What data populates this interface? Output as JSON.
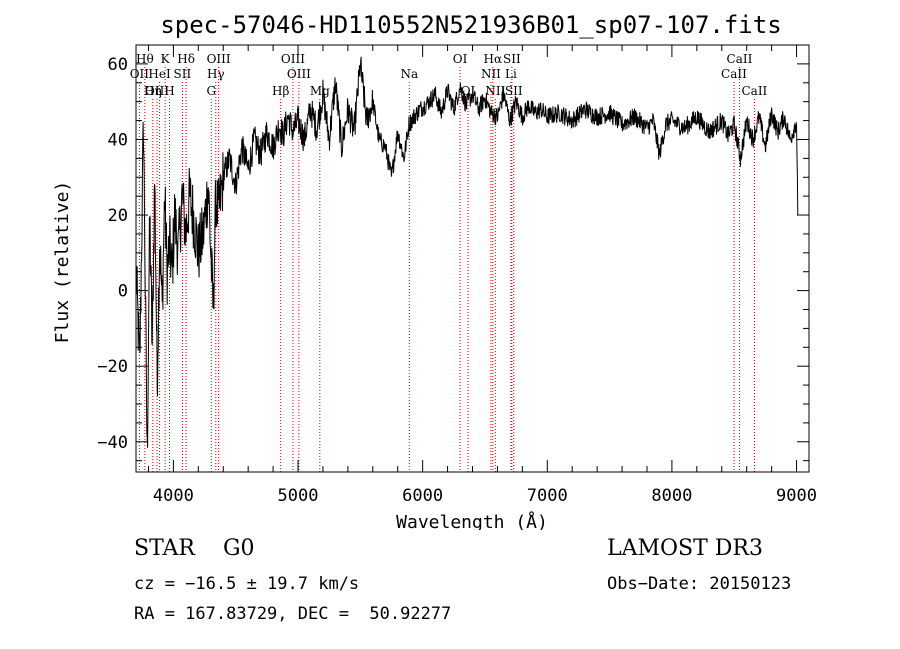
{
  "chart_data": {
    "type": "line",
    "title": "spec-57046-HD110552N521936B01_sp07-107.fits",
    "xlabel": "Wavelength (Å)",
    "ylabel": "Flux (relative)",
    "xlim": [
      3700,
      9100
    ],
    "ylim": [
      -48,
      65
    ],
    "xticks": [
      4000,
      5000,
      6000,
      7000,
      8000,
      9000
    ],
    "xtick_labels": [
      "4000",
      "5000",
      "6000",
      "7000",
      "8000",
      "9000"
    ],
    "yticks": [
      -40,
      -20,
      0,
      20,
      40,
      60
    ],
    "ytick_labels": [
      "−40",
      "−20",
      "0",
      "20",
      "40",
      "60"
    ],
    "series": [
      {
        "name": "flux",
        "x": [
          3700,
          3730,
          3760,
          3790,
          3810,
          3830,
          3850,
          3870,
          3890,
          3910,
          3930,
          3950,
          3970,
          3990,
          4010,
          4040,
          4070,
          4100,
          4130,
          4160,
          4200,
          4240,
          4280,
          4300,
          4320,
          4340,
          4360,
          4400,
          4450,
          4500,
          4550,
          4600,
          4650,
          4700,
          4750,
          4800,
          4850,
          4880,
          4920,
          4960,
          5000,
          5050,
          5100,
          5150,
          5200,
          5250,
          5300,
          5350,
          5400,
          5450,
          5500,
          5550,
          5600,
          5650,
          5700,
          5750,
          5800,
          5850,
          5890,
          5930,
          5980,
          6050,
          6100,
          6150,
          6200,
          6250,
          6300,
          6350,
          6400,
          6450,
          6500,
          6550,
          6600,
          6650,
          6700,
          6750,
          6800,
          6850,
          6900,
          6950,
          7000,
          7100,
          7200,
          7300,
          7400,
          7500,
          7600,
          7700,
          7800,
          7850,
          7900,
          7950,
          8000,
          8100,
          8200,
          8300,
          8400,
          8450,
          8500,
          8550,
          8600,
          8650,
          8700,
          8750,
          8800,
          8850,
          8900,
          8950,
          9000,
          9010
        ],
        "values": [
          5,
          -20,
          45,
          -45,
          20,
          -15,
          30,
          -25,
          15,
          -5,
          25,
          5,
          12,
          5,
          20,
          10,
          25,
          15,
          25,
          20,
          10,
          15,
          28,
          10,
          -5,
          25,
          20,
          30,
          35,
          28,
          38,
          32,
          40,
          36,
          42,
          38,
          44,
          41,
          46,
          42,
          45,
          40,
          48,
          43,
          52,
          40,
          55,
          38,
          48,
          42,
          60,
          45,
          50,
          40,
          38,
          30,
          42,
          35,
          44,
          46,
          48,
          50,
          52,
          47,
          53,
          48,
          54,
          49,
          52,
          48,
          51,
          47,
          46,
          52,
          45,
          50,
          46,
          49,
          47,
          48,
          46,
          47,
          45,
          48,
          46,
          47,
          44,
          46,
          43,
          45,
          36,
          44,
          45,
          43,
          46,
          42,
          45,
          41,
          44,
          35,
          45,
          40,
          46,
          38,
          47,
          42,
          46,
          40,
          45,
          20
        ]
      }
    ],
    "line_markers": [
      {
        "label": "Hθ",
        "wavelength": 3771,
        "row": 1
      },
      {
        "label": "K",
        "wavelength": 3934,
        "row": 1
      },
      {
        "label": "Hδ",
        "wavelength": 4102,
        "row": 1
      },
      {
        "label": "OIII",
        "wavelength": 4363,
        "row": 1
      },
      {
        "label": "OIII",
        "wavelength": 4959,
        "row": 1
      },
      {
        "label": "OI",
        "wavelength": 6300,
        "row": 1
      },
      {
        "label": "Hα",
        "wavelength": 6563,
        "row": 1
      },
      {
        "label": "SII",
        "wavelength": 6716,
        "row": 1
      },
      {
        "label": "CaII",
        "wavelength": 8542,
        "row": 1
      },
      {
        "label": "OII",
        "wavelength": 3727,
        "row": 2
      },
      {
        "label": "HeI",
        "wavelength": 3889,
        "row": 2
      },
      {
        "label": "SII",
        "wavelength": 4072,
        "row": 2
      },
      {
        "label": "Hγ",
        "wavelength": 4340,
        "row": 2
      },
      {
        "label": "OIII",
        "wavelength": 5007,
        "row": 2
      },
      {
        "label": "Na",
        "wavelength": 5893,
        "row": 2
      },
      {
        "label": "NII",
        "wavelength": 6548,
        "row": 2
      },
      {
        "label": "Li",
        "wavelength": 6708,
        "row": 2
      },
      {
        "label": "CaII",
        "wavelength": 8498,
        "row": 2
      },
      {
        "label": "OIII",
        "wavelength": 3869,
        "row": 3
      },
      {
        "label": "Hη",
        "wavelength": 3835,
        "row": 3
      },
      {
        "label": "H",
        "wavelength": 3969,
        "row": 3
      },
      {
        "label": "G",
        "wavelength": 4304,
        "row": 3
      },
      {
        "label": "Hβ",
        "wavelength": 4861,
        "row": 3
      },
      {
        "label": "Mg",
        "wavelength": 5175,
        "row": 3
      },
      {
        "label": "OI",
        "wavelength": 6364,
        "row": 3
      },
      {
        "label": "NII",
        "wavelength": 6583,
        "row": 3
      },
      {
        "label": "SII",
        "wavelength": 6731,
        "row": 3
      },
      {
        "label": "CaII",
        "wavelength": 8662,
        "row": 3
      }
    ]
  },
  "info": {
    "object_class": "STAR    G0",
    "survey": "LAMOST DR3",
    "cz": "cz = −16.5 ± 19.7 km/s",
    "obs_date": "Obs−Date: 20150123",
    "radec": "RA = 167.83729, DEC =  50.92277"
  },
  "colors": {
    "spectrum": "#000000",
    "marker_line": "#cc0000",
    "axes": "#000000"
  }
}
